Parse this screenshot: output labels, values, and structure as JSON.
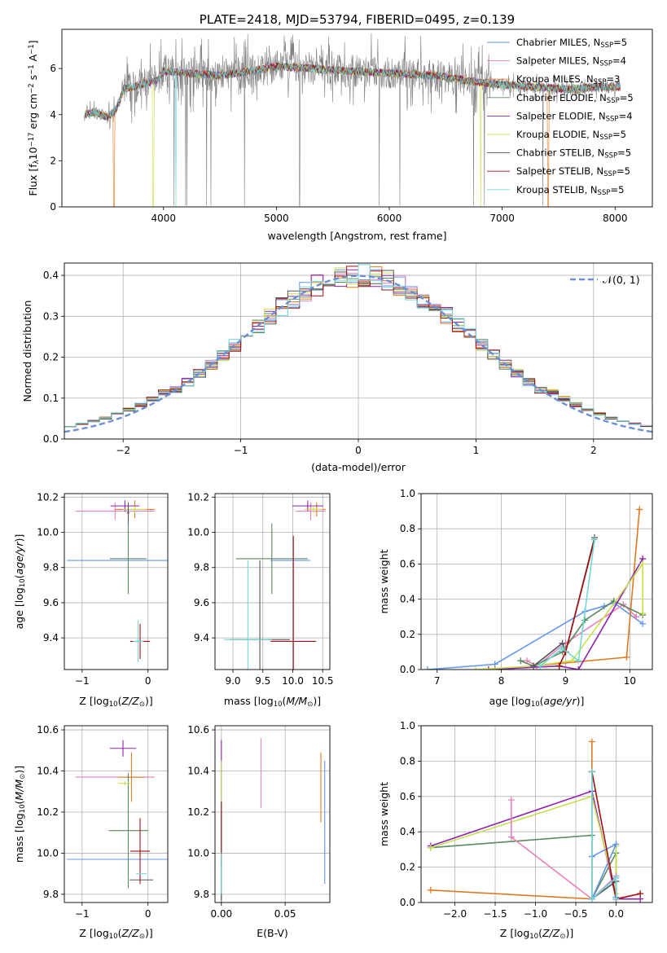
{
  "colors": {
    "Chabrier MILES": "#6495ed",
    "Salpeter MILES": "#e87fb8",
    "Kroupa MILES": "#e07a20",
    "Chabrier ELODIE": "#5a8a60",
    "Salpeter ELODIE": "#9020b0",
    "Kroupa ELODIE": "#c8e050",
    "Chabrier STELIB": "#555555",
    "Salpeter STELIB": "#a01010",
    "Kroupa STELIB": "#70d8d8",
    "data": "#808080",
    "gauss": "#6a8fd6"
  },
  "chart_data": [
    {
      "id": "spectrum",
      "type": "line",
      "title": "PLATE=2418, MJD=53794, FIBERID=0495, z=0.139",
      "xlabel": "wavelength [Angstrom, rest frame]",
      "ylabel": "Flux [f",
      "ylabel_parts": [
        "λ",
        "10",
        "−17",
        " erg cm",
        "−2",
        " s",
        "−1",
        " A",
        "−1",
        "]"
      ],
      "xlim": [
        3100,
        8330
      ],
      "ylim": [
        0,
        7.7
      ],
      "xticks": [
        "4000",
        "5000",
        "6000",
        "7000",
        "8000"
      ],
      "xtick_vals": [
        4000,
        5000,
        6000,
        7000,
        8000
      ],
      "yticks": [
        "0",
        "2",
        "4",
        "6"
      ],
      "ytick_vals": [
        0,
        2,
        4,
        6
      ],
      "continuum_x": [
        3300,
        3400,
        3500,
        3580,
        3650,
        3800,
        3950,
        4000,
        4200,
        4500,
        4800,
        5000,
        5300,
        5600,
        6000,
        6400,
        6800,
        7000,
        7300,
        7600,
        7800,
        8050
      ],
      "continuum_y": [
        4.0,
        4.1,
        3.9,
        4.2,
        5.1,
        5.3,
        5.5,
        5.9,
        5.8,
        5.7,
        5.9,
        6.1,
        6.0,
        5.9,
        5.8,
        5.7,
        5.4,
        5.3,
        5.2,
        5.1,
        5.2,
        5.2
      ],
      "legend": [
        {
          "label": "Chabrier MILES, N",
          "sub": "SSP",
          "val": "=5"
        },
        {
          "label": "Salpeter MILES, N",
          "sub": "SSP",
          "val": "=4"
        },
        {
          "label": "Kroupa MILES, N",
          "sub": "SSP",
          "val": "=3"
        },
        {
          "label": "Chabrier ELODIE, N",
          "sub": "SSP",
          "val": "=5"
        },
        {
          "label": "Salpeter ELODIE, N",
          "sub": "SSP",
          "val": "=4"
        },
        {
          "label": "Kroupa ELODIE, N",
          "sub": "SSP",
          "val": "=5"
        },
        {
          "label": "Chabrier STELIB, N",
          "sub": "SSP",
          "val": "=5"
        },
        {
          "label": "Salpeter STELIB, N",
          "sub": "SSP",
          "val": "=5"
        },
        {
          "label": "Kroupa STELIB, N",
          "sub": "SSP",
          "val": "=5"
        }
      ]
    },
    {
      "id": "residuals",
      "type": "histogram",
      "xlabel": "(data-model)/error",
      "ylabel": "Normed distribution",
      "xlim": [
        -2.5,
        2.5
      ],
      "ylim": [
        0,
        0.43
      ],
      "xticks": [
        "−2",
        "−1",
        "0",
        "1",
        "2"
      ],
      "xtick_vals": [
        -2,
        -1,
        0,
        1,
        2
      ],
      "yticks": [
        "0.0",
        "0.1",
        "0.2",
        "0.3",
        "0.4"
      ],
      "ytick_vals": [
        0,
        0.1,
        0.2,
        0.3,
        0.4
      ],
      "legend": "𝒩(0, 1)",
      "bin_width": 0.1,
      "grid": true
    },
    {
      "id": "age_vs_Z",
      "type": "errorbar",
      "xlabel": "Z [log",
      "xlabel_parts": [
        "10",
        "(Z/Z",
        "⊙",
        ")]"
      ],
      "ylabel": "age  [log",
      "ylabel_parts": [
        "10",
        "(age/yr)]"
      ],
      "xlim": [
        -1.27,
        0.3
      ],
      "ylim": [
        9.22,
        10.22
      ],
      "xticks": [
        "−1",
        "0"
      ],
      "xtick_vals": [
        -1,
        0
      ],
      "yticks": [
        "9.4",
        "9.6",
        "9.8",
        "10.0",
        "10.2"
      ],
      "ytick_vals": [
        9.4,
        9.6,
        9.8,
        10.0,
        10.2
      ],
      "points": [
        {
          "s": "Chabrier MILES",
          "x": -0.45,
          "y": 9.84,
          "xe": 0.78,
          "ye": 0.0
        },
        {
          "s": "Salpeter MILES",
          "x": -0.5,
          "y": 10.12,
          "xe": 0.6,
          "ye": 0.05
        },
        {
          "s": "Kroupa MILES",
          "x": -0.2,
          "y": 10.13,
          "xe": 0.3,
          "ye": 0.05
        },
        {
          "s": "Chabrier ELODIE",
          "x": -0.3,
          "y": 9.85,
          "xe": 0.28,
          "ye": 0.2
        },
        {
          "s": "Salpeter ELODIE",
          "x": -0.35,
          "y": 10.15,
          "xe": 0.22,
          "ye": 0.03
        },
        {
          "s": "Kroupa ELODIE",
          "x": -0.2,
          "y": 10.13,
          "xe": 0.18,
          "ye": 0.02
        },
        {
          "s": "Chabrier STELIB",
          "x": -0.3,
          "y": 10.11,
          "xe": 0.02,
          "ye": 0.06
        },
        {
          "s": "Salpeter STELIB",
          "x": -0.12,
          "y": 9.38,
          "xe": 0.15,
          "ye": 0.1
        },
        {
          "s": "Kroupa STELIB",
          "x": -0.15,
          "y": 9.38,
          "xe": 0.08,
          "ye": 0.12
        }
      ]
    },
    {
      "id": "age_vs_mass",
      "type": "errorbar",
      "xlabel": "mass [log",
      "xlabel_parts": [
        "10",
        "(M/M",
        "⊙",
        ")]"
      ],
      "xlim": [
        8.7,
        10.62
      ],
      "ylim": [
        9.22,
        10.22
      ],
      "xticks": [
        "9.0",
        "9.5",
        "10.0",
        "10.5"
      ],
      "xtick_vals": [
        9.0,
        9.5,
        10.0,
        10.5
      ],
      "yticks": [
        "9.4",
        "9.6",
        "9.8",
        "10.0",
        "10.2"
      ],
      "ytick_vals": [
        9.4,
        9.6,
        9.8,
        10.0,
        10.2
      ],
      "points": [
        {
          "s": "Chabrier MILES",
          "x": 9.96,
          "y": 9.84,
          "xe": 0.33,
          "ye": 0.0
        },
        {
          "s": "Salpeter MILES",
          "x": 10.3,
          "y": 10.12,
          "xe": 0.25,
          "ye": 0.05
        },
        {
          "s": "Kroupa MILES",
          "x": 10.4,
          "y": 10.13,
          "xe": 0.15,
          "ye": 0.04
        },
        {
          "s": "Chabrier ELODIE",
          "x": 9.65,
          "y": 9.85,
          "xe": 0.6,
          "ye": 0.2
        },
        {
          "s": "Salpeter ELODIE",
          "x": 10.25,
          "y": 10.15,
          "xe": 0.26,
          "ye": 0.03
        },
        {
          "s": "Kroupa ELODIE",
          "x": 10.35,
          "y": 10.13,
          "xe": 0.15,
          "ye": 0.02
        },
        {
          "s": "Chabrier STELIB",
          "x": 9.45,
          "y": 9.39,
          "xe": 0.5,
          "ye": 0.45
        },
        {
          "s": "Salpeter STELIB",
          "x": 10.01,
          "y": 9.38,
          "xe": 0.38,
          "ye": 0.6
        },
        {
          "s": "Kroupa STELIB",
          "x": 9.25,
          "y": 9.39,
          "xe": 0.4,
          "ye": 0.45
        }
      ]
    },
    {
      "id": "mass_weight_vs_age",
      "type": "line",
      "xlabel": "age  [log",
      "xlabel_parts": [
        "10",
        "(age/yr)]"
      ],
      "ylabel": "mass weight",
      "xlim": [
        6.75,
        10.35
      ],
      "ylim": [
        0,
        1.0
      ],
      "xticks": [
        "7",
        "8",
        "9",
        "10"
      ],
      "xtick_vals": [
        7,
        8,
        9,
        10
      ],
      "yticks": [
        "0.0",
        "0.2",
        "0.4",
        "0.6",
        "0.8",
        "1.0"
      ],
      "ytick_vals": [
        0,
        0.2,
        0.4,
        0.6,
        0.8,
        1.0
      ],
      "series": [
        {
          "s": "Chabrier MILES",
          "x": [
            6.85,
            7.9,
            9.3,
            9.6,
            9.75,
            10.2
          ],
          "y": [
            0.0,
            0.03,
            0.33,
            0.36,
            0.38,
            0.26
          ]
        },
        {
          "s": "Salpeter MILES",
          "x": [
            8.4,
            8.55,
            9.0,
            9.9,
            10.1
          ],
          "y": [
            0.05,
            0.02,
            0.15,
            0.37,
            0.3
          ]
        },
        {
          "s": "Kroupa MILES",
          "x": [
            7.9,
            9.95,
            10.15
          ],
          "y": [
            0.0,
            0.07,
            0.91
          ]
        },
        {
          "s": "Chabrier ELODIE",
          "x": [
            8.3,
            8.5,
            8.95,
            9.3,
            9.75,
            10.2
          ],
          "y": [
            0.05,
            0.02,
            0.1,
            0.28,
            0.39,
            0.31
          ]
        },
        {
          "s": "Salpeter ELODIE",
          "x": [
            7.8,
            8.9,
            9.2,
            10.2
          ],
          "y": [
            0.0,
            0.02,
            0.0,
            0.63
          ]
        },
        {
          "s": "Kroupa ELODIE",
          "x": [
            7.6,
            8.5,
            9.1,
            10.2,
            10.2
          ],
          "y": [
            0.0,
            0.02,
            0.05,
            0.6,
            0.32
          ]
        },
        {
          "s": "Chabrier STELIB",
          "x": [
            8.5,
            8.95,
            9.0,
            9.45
          ],
          "y": [
            0.02,
            0.15,
            0.1,
            0.75
          ]
        },
        {
          "s": "Salpeter STELIB",
          "x": [
            8.9,
            9.0,
            9.45
          ],
          "y": [
            0.02,
            0.1,
            0.74
          ]
        },
        {
          "s": "Kroupa STELIB",
          "x": [
            8.6,
            8.95,
            9.2,
            9.45
          ],
          "y": [
            0.02,
            0.12,
            0.05,
            0.74
          ]
        }
      ]
    },
    {
      "id": "mass_vs_Z",
      "type": "errorbar",
      "xlabel": "Z [log",
      "xlabel_parts": [
        "10",
        "(Z/Z",
        "⊙",
        ")]"
      ],
      "ylabel": "mass [log",
      "ylabel_parts": [
        "10",
        "(M/M",
        "⊙",
        ")]"
      ],
      "xlim": [
        -1.27,
        0.3
      ],
      "ylim": [
        9.76,
        10.62
      ],
      "xticks": [
        "−1",
        "0"
      ],
      "xtick_vals": [
        -1,
        0
      ],
      "yticks": [
        "9.8",
        "10.0",
        "10.2",
        "10.4",
        "10.6"
      ],
      "ytick_vals": [
        9.8,
        10.0,
        10.2,
        10.4,
        10.6
      ],
      "points": [
        {
          "s": "Chabrier MILES",
          "x": -0.45,
          "y": 9.97,
          "xe": 0.78,
          "ye": 0.0
        },
        {
          "s": "Salpeter MILES",
          "x": -0.5,
          "y": 10.37,
          "xe": 0.6,
          "ye": 0.0
        },
        {
          "s": "Kroupa MILES",
          "x": -0.25,
          "y": 10.37,
          "xe": 0.2,
          "ye": 0.12
        },
        {
          "s": "Chabrier ELODIE",
          "x": -0.3,
          "y": 10.11,
          "xe": 0.3,
          "ye": 0.28
        },
        {
          "s": "Salpeter ELODIE",
          "x": -0.38,
          "y": 10.51,
          "xe": 0.2,
          "ye": 0.04
        },
        {
          "s": "Kroupa ELODIE",
          "x": -0.35,
          "y": 10.34,
          "xe": 0.1,
          "ye": 0.01
        },
        {
          "s": "Chabrier STELIB",
          "x": -0.1,
          "y": 9.87,
          "xe": 0.18,
          "ye": 0.0
        },
        {
          "s": "Salpeter STELIB",
          "x": -0.12,
          "y": 10.01,
          "xe": 0.15,
          "ye": 0.16
        },
        {
          "s": "Kroupa STELIB",
          "x": -0.1,
          "y": 9.9,
          "xe": 0.08,
          "ye": 0.0
        }
      ]
    },
    {
      "id": "mass_vs_EBV",
      "type": "errorbar",
      "xlabel": "E(B-V)",
      "xlim": [
        -0.005,
        0.085
      ],
      "ylim": [
        9.76,
        10.62
      ],
      "xticks": [
        "0.00",
        "0.05"
      ],
      "xtick_vals": [
        0,
        0.05
      ],
      "yticks": [
        "9.8",
        "10.0",
        "10.2",
        "10.4",
        "10.6"
      ],
      "ytick_vals": [
        9.8,
        10.0,
        10.2,
        10.4,
        10.6
      ],
      "points": [
        {
          "s": "Chabrier MILES",
          "x": 0.081,
          "y": 10.15,
          "ye": 0.3
        },
        {
          "s": "Salpeter MILES",
          "x": 0.031,
          "y": 10.39,
          "ye": 0.17
        },
        {
          "s": "Kroupa MILES",
          "x": 0.078,
          "y": 10.32,
          "ye": 0.17
        },
        {
          "s": "Chabrier ELODIE",
          "x": 0.0,
          "y": 10.0,
          "ye": 0.25
        },
        {
          "s": "Salpeter ELODIE",
          "x": 0.0,
          "y": 10.4,
          "ye": 0.15
        },
        {
          "s": "Kroupa ELODIE",
          "x": 0.0,
          "y": 10.35,
          "ye": 0.1
        },
        {
          "s": "Chabrier STELIB",
          "x": 0.0,
          "y": 9.87,
          "ye": 0.1
        },
        {
          "s": "Salpeter STELIB",
          "x": 0.0,
          "y": 10.1,
          "ye": 0.15
        },
        {
          "s": "Kroupa STELIB",
          "x": 0.0,
          "y": 9.9,
          "ye": 0.1
        }
      ]
    },
    {
      "id": "mass_weight_vs_Z",
      "type": "line",
      "xlabel": "Z [log",
      "xlabel_parts": [
        "10",
        "(Z/Z",
        "⊙",
        ")]"
      ],
      "ylabel": "mass weight",
      "xlim": [
        -2.42,
        0.45
      ],
      "ylim": [
        0,
        1.0
      ],
      "xticks": [
        "−2.0",
        "−1.5",
        "−1.0",
        "−0.5",
        "0.0"
      ],
      "xtick_vals": [
        -2,
        -1.5,
        -1,
        -0.5,
        0
      ],
      "yticks": [
        "0.0",
        "0.2",
        "0.4",
        "0.6",
        "0.8",
        "1.0"
      ],
      "ytick_vals": [
        0,
        0.2,
        0.4,
        0.6,
        0.8,
        1.0
      ],
      "series": [
        {
          "s": "Kroupa MILES",
          "x": [
            -2.3,
            -0.3,
            -0.3
          ],
          "y": [
            0.07,
            0.02,
            0.91
          ]
        },
        {
          "s": "Chabrier ELODIE",
          "x": [
            -2.3,
            -0.3,
            -0.3,
            0.0,
            0.0
          ],
          "y": [
            0.31,
            0.38,
            0.02,
            0.28,
            0.02
          ]
        },
        {
          "s": "Salpeter ELODIE",
          "x": [
            -2.3,
            -0.3,
            0.0,
            0.3
          ],
          "y": [
            0.32,
            0.63,
            0.02,
            0.02
          ]
        },
        {
          "s": "Kroupa ELODIE",
          "x": [
            -2.3,
            -0.3,
            0.0,
            0.0
          ],
          "y": [
            0.31,
            0.6,
            0.05,
            0.32
          ]
        },
        {
          "s": "Salpeter MILES",
          "x": [
            -1.3,
            -1.3,
            -0.3,
            0.0
          ],
          "y": [
            0.58,
            0.37,
            0.02,
            0.15
          ]
        },
        {
          "s": "Chabrier MILES",
          "x": [
            -0.3,
            0.0,
            -0.3,
            0.0,
            0.0
          ],
          "y": [
            0.26,
            0.33,
            0.02,
            0.14,
            0.03
          ]
        },
        {
          "s": "Chabrier STELIB",
          "x": [
            -0.3,
            -0.3,
            0.0,
            0.0
          ],
          "y": [
            0.74,
            0.02,
            0.12,
            0.02
          ]
        },
        {
          "s": "Salpeter STELIB",
          "x": [
            -0.3,
            0.0,
            0.3
          ],
          "y": [
            0.74,
            0.02,
            0.05
          ]
        },
        {
          "s": "Kroupa STELIB",
          "x": [
            -0.3,
            -0.3,
            0.0,
            0.0
          ],
          "y": [
            0.74,
            0.02,
            0.14,
            0.02
          ]
        }
      ]
    }
  ]
}
